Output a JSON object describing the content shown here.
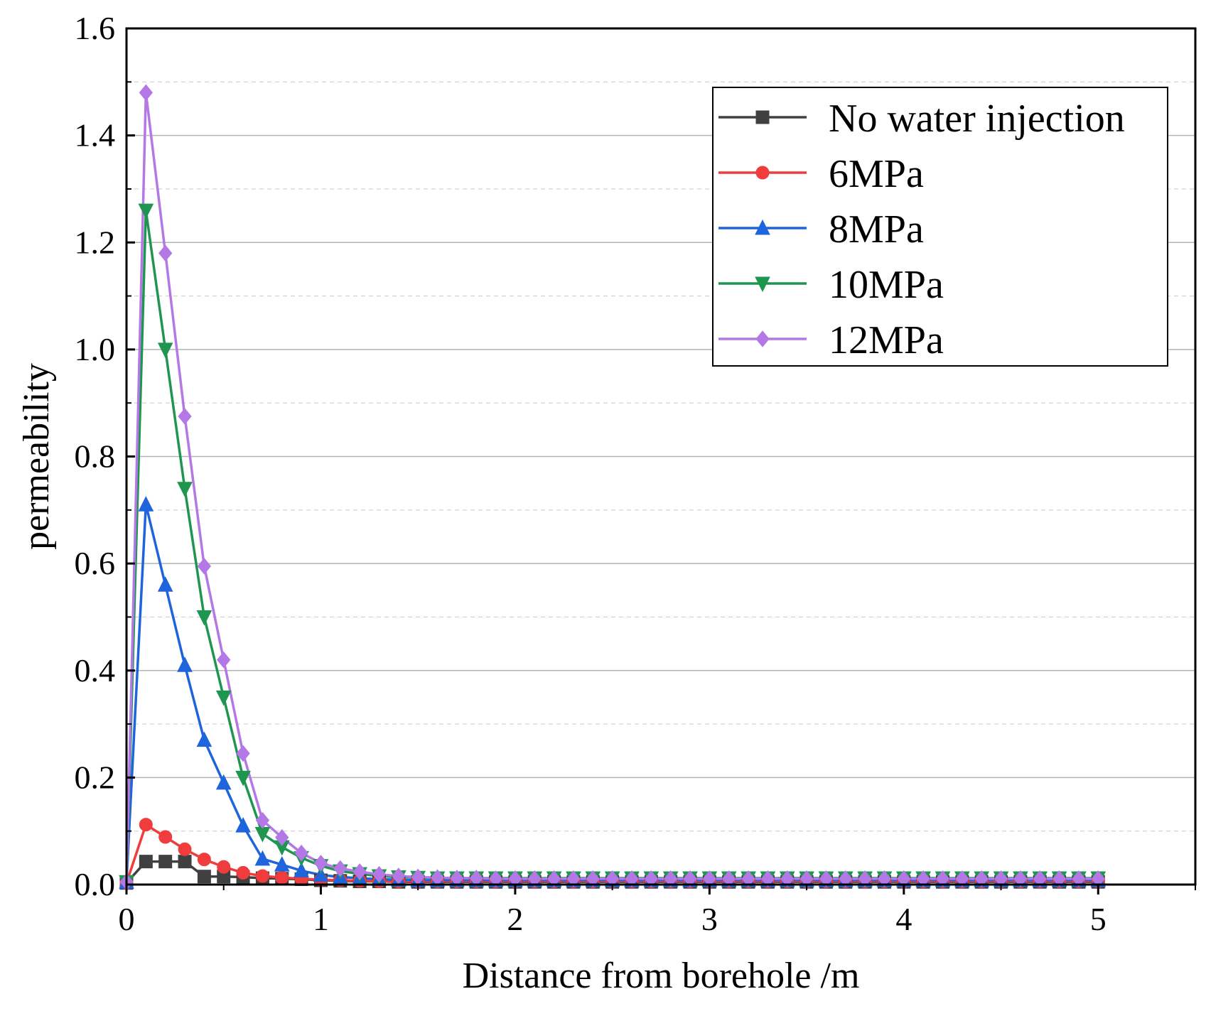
{
  "chart_data": {
    "type": "line",
    "title": "",
    "xlabel": "Distance from borehole /m",
    "ylabel": "permeability",
    "xlim": [
      0,
      5.5
    ],
    "ylim": [
      0,
      1.6
    ],
    "xticks": [
      0,
      1,
      2,
      3,
      4,
      5
    ],
    "xtick_labels": [
      "0",
      "1",
      "2",
      "3",
      "4",
      "5"
    ],
    "yticks": [
      0.0,
      0.2,
      0.4,
      0.6,
      0.8,
      1.0,
      1.2,
      1.4,
      1.6
    ],
    "ytick_labels": [
      "0.0",
      "0.2",
      "0.4",
      "0.6",
      "0.8",
      "1.0",
      "1.2",
      "1.4",
      "1.6"
    ],
    "grid": true,
    "legend_position": "top-right",
    "x": [
      0,
      0.1,
      0.2,
      0.3,
      0.4,
      0.5,
      0.6,
      0.7,
      0.8,
      0.9,
      1.0,
      1.1,
      1.2,
      1.3,
      1.4,
      1.5,
      1.6,
      1.7,
      1.8,
      1.9,
      2.0,
      2.1,
      2.2,
      2.3,
      2.4,
      2.5,
      2.6,
      2.7,
      2.8,
      2.9,
      3.0,
      3.1,
      3.2,
      3.3,
      3.4,
      3.5,
      3.6,
      3.7,
      3.8,
      3.9,
      4.0,
      4.1,
      4.2,
      4.3,
      4.4,
      4.5,
      4.6,
      4.7,
      4.8,
      4.9,
      5.0
    ],
    "series": [
      {
        "name": "No water injection",
        "color": "#404040",
        "marker": "square",
        "values": [
          0.003,
          0.043,
          0.043,
          0.043,
          0.015,
          0.015,
          0.014,
          0.012,
          0.011,
          0.01,
          0.008,
          0.007,
          0.006,
          0.006,
          0.005,
          0.005,
          0.005,
          0.005,
          0.005,
          0.005,
          0.005,
          0.005,
          0.005,
          0.005,
          0.005,
          0.005,
          0.005,
          0.005,
          0.005,
          0.005,
          0.005,
          0.005,
          0.005,
          0.005,
          0.005,
          0.005,
          0.005,
          0.005,
          0.005,
          0.005,
          0.005,
          0.005,
          0.005,
          0.005,
          0.005,
          0.005,
          0.005,
          0.005,
          0.005,
          0.005,
          0.005
        ]
      },
      {
        "name": "6MPa",
        "color": "#f03c3c",
        "marker": "circle",
        "values": [
          0.003,
          0.112,
          0.089,
          0.066,
          0.047,
          0.033,
          0.022,
          0.016,
          0.013,
          0.011,
          0.009,
          0.008,
          0.007,
          0.006,
          0.006,
          0.006,
          0.006,
          0.006,
          0.006,
          0.006,
          0.006,
          0.006,
          0.006,
          0.006,
          0.006,
          0.006,
          0.006,
          0.006,
          0.006,
          0.006,
          0.006,
          0.006,
          0.006,
          0.006,
          0.006,
          0.006,
          0.006,
          0.006,
          0.006,
          0.006,
          0.006,
          0.006,
          0.006,
          0.006,
          0.006,
          0.006,
          0.006,
          0.006,
          0.006,
          0.006,
          0.006
        ]
      },
      {
        "name": "8MPa",
        "color": "#1e64dc",
        "marker": "triangle-up",
        "values": [
          0.005,
          0.71,
          0.56,
          0.41,
          0.27,
          0.19,
          0.11,
          0.048,
          0.037,
          0.026,
          0.018,
          0.014,
          0.012,
          0.01,
          0.009,
          0.008,
          0.008,
          0.008,
          0.008,
          0.008,
          0.008,
          0.008,
          0.008,
          0.008,
          0.008,
          0.008,
          0.008,
          0.008,
          0.008,
          0.008,
          0.008,
          0.008,
          0.008,
          0.008,
          0.008,
          0.008,
          0.008,
          0.008,
          0.008,
          0.008,
          0.008,
          0.008,
          0.008,
          0.008,
          0.008,
          0.008,
          0.008,
          0.008,
          0.008,
          0.008,
          0.008
        ]
      },
      {
        "name": "10MPa",
        "color": "#1e9650",
        "marker": "triangle-down",
        "values": [
          0.005,
          1.26,
          1.0,
          0.74,
          0.5,
          0.35,
          0.2,
          0.095,
          0.07,
          0.05,
          0.035,
          0.025,
          0.02,
          0.016,
          0.014,
          0.013,
          0.012,
          0.012,
          0.012,
          0.012,
          0.012,
          0.012,
          0.012,
          0.012,
          0.012,
          0.012,
          0.012,
          0.012,
          0.012,
          0.012,
          0.012,
          0.012,
          0.012,
          0.012,
          0.012,
          0.012,
          0.012,
          0.012,
          0.012,
          0.012,
          0.012,
          0.012,
          0.012,
          0.012,
          0.012,
          0.012,
          0.012,
          0.012,
          0.012,
          0.012,
          0.012
        ]
      },
      {
        "name": "12MPa",
        "color": "#b478e6",
        "marker": "diamond",
        "values": [
          0.005,
          1.48,
          1.18,
          0.875,
          0.595,
          0.42,
          0.245,
          0.12,
          0.088,
          0.059,
          0.04,
          0.03,
          0.024,
          0.019,
          0.016,
          0.014,
          0.013,
          0.012,
          0.012,
          0.011,
          0.011,
          0.011,
          0.011,
          0.011,
          0.011,
          0.011,
          0.011,
          0.011,
          0.011,
          0.011,
          0.011,
          0.011,
          0.011,
          0.011,
          0.011,
          0.011,
          0.011,
          0.011,
          0.011,
          0.011,
          0.011,
          0.011,
          0.011,
          0.011,
          0.011,
          0.011,
          0.011,
          0.011,
          0.011,
          0.011,
          0.011
        ]
      }
    ]
  }
}
